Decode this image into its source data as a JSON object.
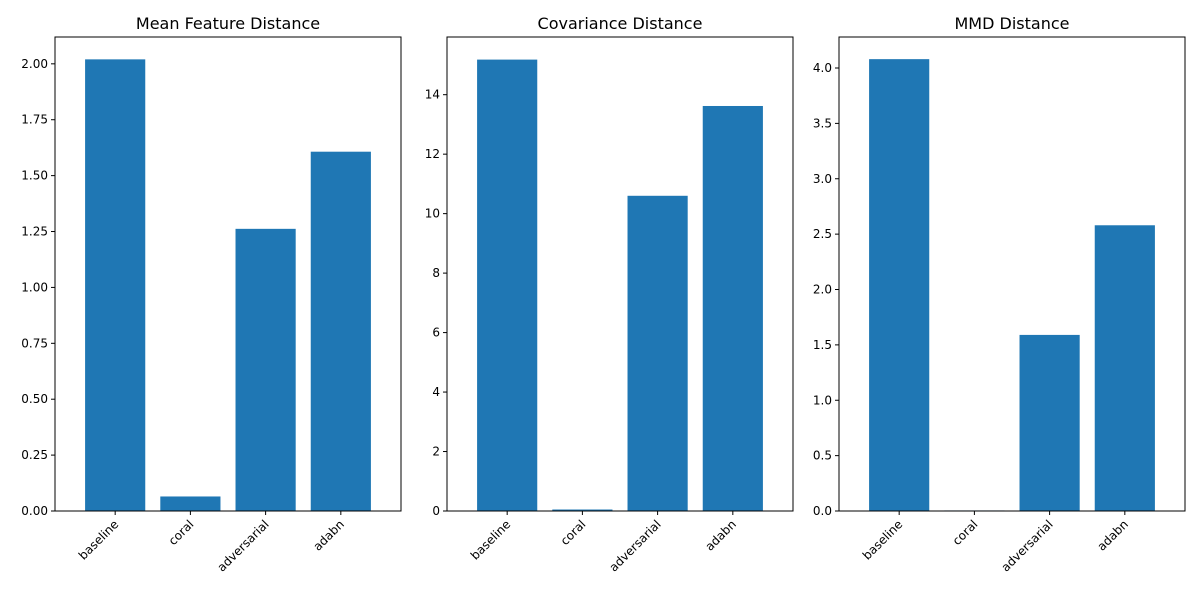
{
  "chart_data": [
    {
      "type": "bar",
      "title": "Mean Feature Distance",
      "categories": [
        "baseline",
        "coral",
        "adversarial",
        "adabn"
      ],
      "values": [
        2.02,
        0.065,
        1.262,
        1.607
      ],
      "ylim": [
        0,
        2.12
      ],
      "yticks": [
        0.0,
        0.25,
        0.5,
        0.75,
        1.0,
        1.25,
        1.5,
        1.75,
        2.0
      ],
      "ytick_labels": [
        "0.00",
        "0.25",
        "0.50",
        "0.75",
        "1.00",
        "1.25",
        "1.50",
        "1.75",
        "2.00"
      ],
      "xlabel": "",
      "ylabel": "",
      "grid": false,
      "bar_color": "#1f77b4"
    },
    {
      "type": "bar",
      "title": "Covariance Distance",
      "categories": [
        "baseline",
        "coral",
        "adversarial",
        "adabn"
      ],
      "values": [
        15.18,
        0.05,
        10.6,
        13.62
      ],
      "ylim": [
        0,
        15.94
      ],
      "yticks": [
        0,
        2,
        4,
        6,
        8,
        10,
        12,
        14
      ],
      "ytick_labels": [
        "0",
        "2",
        "4",
        "6",
        "8",
        "10",
        "12",
        "14"
      ],
      "xlabel": "",
      "ylabel": "",
      "grid": false,
      "bar_color": "#1f77b4"
    },
    {
      "type": "bar",
      "title": "MMD Distance",
      "categories": [
        "baseline",
        "coral",
        "adversarial",
        "adabn"
      ],
      "values": [
        4.08,
        0.005,
        1.59,
        2.58
      ],
      "ylim": [
        0,
        4.28
      ],
      "yticks": [
        0.0,
        0.5,
        1.0,
        1.5,
        2.0,
        2.5,
        3.0,
        3.5,
        4.0
      ],
      "ytick_labels": [
        "0.0",
        "0.5",
        "1.0",
        "1.5",
        "2.0",
        "2.5",
        "3.0",
        "3.5",
        "4.0"
      ],
      "xlabel": "",
      "ylabel": "",
      "grid": false,
      "bar_color": "#1f77b4"
    }
  ]
}
